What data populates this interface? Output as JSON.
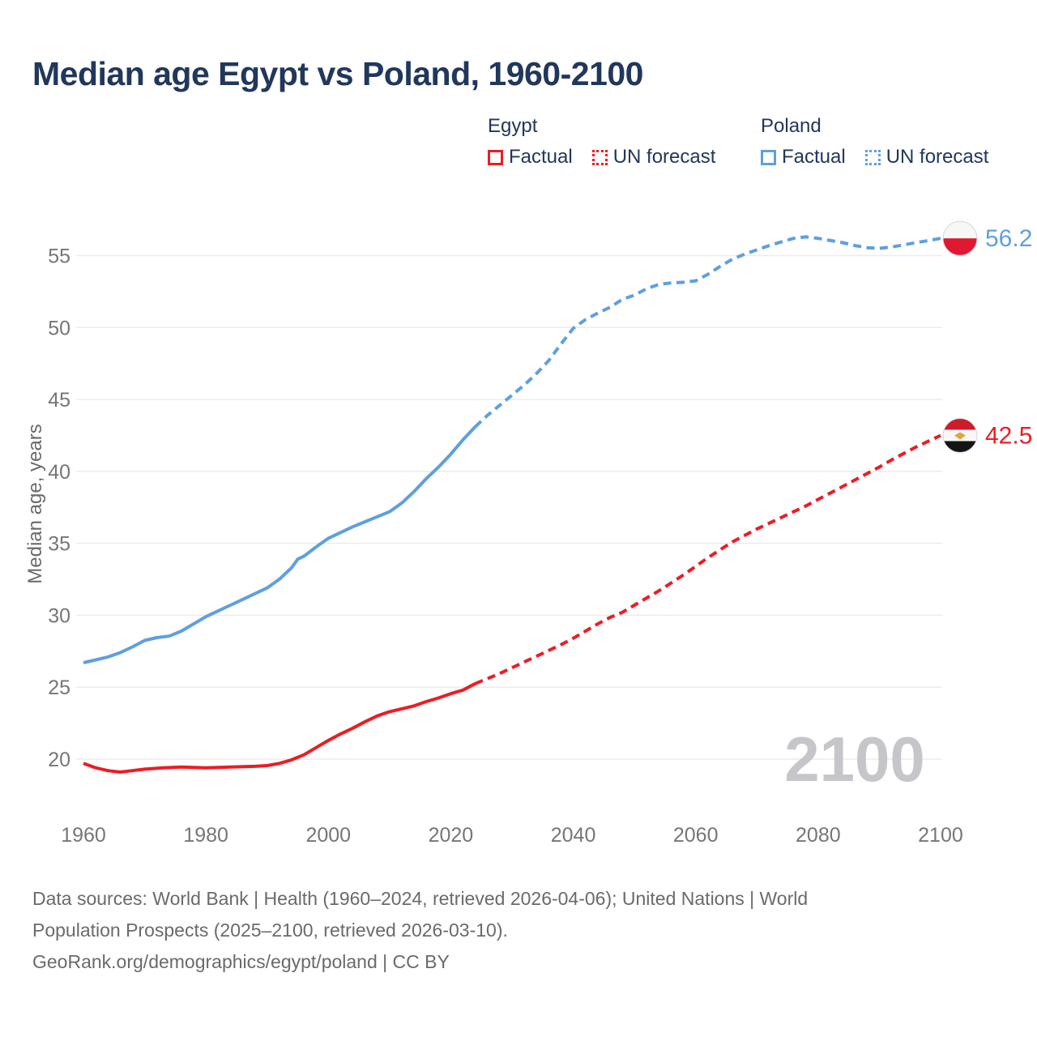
{
  "title": "Median age Egypt vs Poland, 1960-2100",
  "watermark": "2100",
  "colors": {
    "egypt": "#ed1c24",
    "poland": "#5f9fdf",
    "navy": "#21375c",
    "tick_gray": "#76767a",
    "gridline": "#ececee",
    "watermark_gray": "#c6c6ca"
  },
  "legend": {
    "groups": [
      {
        "country": "Egypt",
        "color": "#ed1c24",
        "items": [
          {
            "label": "Factual",
            "style": "solid"
          },
          {
            "label": "UN forecast",
            "style": "dotted"
          }
        ]
      },
      {
        "country": "Poland",
        "color": "#5f9fdf",
        "items": [
          {
            "label": "Factual",
            "style": "solid"
          },
          {
            "label": "UN forecast",
            "style": "dotted"
          }
        ]
      }
    ]
  },
  "footer": {
    "line1": "Data sources: World Bank | Health (1960–2024, retrieved 2026-04-06); United Nations | World",
    "line2": "Population Prospects (2025–2100, retrieved 2026-03-10).",
    "line3": "GeoRank.org/demographics/egypt/poland | CC BY"
  },
  "chart_data": {
    "type": "line",
    "title": "Median age Egypt vs Poland, 1960-2100",
    "xlabel": "",
    "ylabel": "Median age, years",
    "x_ticks": [
      1960,
      1980,
      2000,
      2020,
      2040,
      2060,
      2080,
      2100
    ],
    "y_ticks": [
      20,
      25,
      30,
      35,
      40,
      45,
      50,
      55
    ],
    "xlim": [
      1959,
      2113
    ],
    "ylim": [
      18.5,
      58
    ],
    "grid": "horizontal",
    "legend_position": "top",
    "series": [
      {
        "name": "Egypt factual",
        "color": "#ed1c24",
        "dash": "solid",
        "points": [
          [
            1960,
            19.7
          ],
          [
            1962,
            19.4
          ],
          [
            1964,
            19.2
          ],
          [
            1966,
            19.1
          ],
          [
            1968,
            19.2
          ],
          [
            1970,
            19.3
          ],
          [
            1973,
            19.4
          ],
          [
            1976,
            19.45
          ],
          [
            1980,
            19.4
          ],
          [
            1984,
            19.45
          ],
          [
            1988,
            19.5
          ],
          [
            1990,
            19.55
          ],
          [
            1992,
            19.7
          ],
          [
            1994,
            19.95
          ],
          [
            1996,
            20.3
          ],
          [
            1998,
            20.8
          ],
          [
            2000,
            21.3
          ],
          [
            2002,
            21.75
          ],
          [
            2004,
            22.15
          ],
          [
            2006,
            22.6
          ],
          [
            2008,
            23.0
          ],
          [
            2010,
            23.3
          ],
          [
            2012,
            23.5
          ],
          [
            2014,
            23.7
          ],
          [
            2016,
            24.0
          ],
          [
            2018,
            24.25
          ],
          [
            2020,
            24.55
          ],
          [
            2022,
            24.8
          ],
          [
            2024,
            25.25
          ]
        ]
      },
      {
        "name": "Egypt UN forecast",
        "color": "#ed1c24",
        "dash": "dashed",
        "points": [
          [
            2024,
            25.25
          ],
          [
            2026,
            25.6
          ],
          [
            2028,
            25.95
          ],
          [
            2030,
            26.35
          ],
          [
            2032,
            26.75
          ],
          [
            2034,
            27.15
          ],
          [
            2036,
            27.55
          ],
          [
            2038,
            27.95
          ],
          [
            2040,
            28.4
          ],
          [
            2042,
            28.9
          ],
          [
            2044,
            29.4
          ],
          [
            2046,
            29.85
          ],
          [
            2048,
            30.2
          ],
          [
            2050,
            30.7
          ],
          [
            2052,
            31.2
          ],
          [
            2054,
            31.7
          ],
          [
            2056,
            32.25
          ],
          [
            2058,
            32.8
          ],
          [
            2060,
            33.4
          ],
          [
            2062,
            34.0
          ],
          [
            2064,
            34.55
          ],
          [
            2066,
            35.1
          ],
          [
            2068,
            35.55
          ],
          [
            2070,
            36.0
          ],
          [
            2072,
            36.4
          ],
          [
            2074,
            36.8
          ],
          [
            2076,
            37.2
          ],
          [
            2078,
            37.6
          ],
          [
            2080,
            38.05
          ],
          [
            2082,
            38.5
          ],
          [
            2084,
            38.95
          ],
          [
            2086,
            39.4
          ],
          [
            2088,
            39.85
          ],
          [
            2090,
            40.3
          ],
          [
            2092,
            40.8
          ],
          [
            2094,
            41.25
          ],
          [
            2096,
            41.7
          ],
          [
            2098,
            42.1
          ],
          [
            2100,
            42.5
          ]
        ]
      },
      {
        "name": "Poland factual",
        "color": "#5f9fdf",
        "dash": "solid",
        "points": [
          [
            1960,
            26.7
          ],
          [
            1962,
            26.9
          ],
          [
            1964,
            27.1
          ],
          [
            1966,
            27.4
          ],
          [
            1968,
            27.8
          ],
          [
            1970,
            28.25
          ],
          [
            1972,
            28.45
          ],
          [
            1974,
            28.55
          ],
          [
            1976,
            28.9
          ],
          [
            1978,
            29.4
          ],
          [
            1980,
            29.9
          ],
          [
            1982,
            30.3
          ],
          [
            1984,
            30.7
          ],
          [
            1986,
            31.1
          ],
          [
            1988,
            31.5
          ],
          [
            1990,
            31.9
          ],
          [
            1992,
            32.5
          ],
          [
            1994,
            33.3
          ],
          [
            1995,
            33.9
          ],
          [
            1996,
            34.1
          ],
          [
            1998,
            34.75
          ],
          [
            2000,
            35.35
          ],
          [
            2002,
            35.75
          ],
          [
            2004,
            36.15
          ],
          [
            2006,
            36.5
          ],
          [
            2008,
            36.85
          ],
          [
            2010,
            37.2
          ],
          [
            2012,
            37.8
          ],
          [
            2014,
            38.6
          ],
          [
            2016,
            39.5
          ],
          [
            2018,
            40.3
          ],
          [
            2020,
            41.2
          ],
          [
            2022,
            42.2
          ],
          [
            2024,
            43.1
          ]
        ]
      },
      {
        "name": "Poland UN forecast",
        "color": "#5f9fdf",
        "dash": "dashed",
        "points": [
          [
            2024,
            43.1
          ],
          [
            2026,
            43.9
          ],
          [
            2028,
            44.6
          ],
          [
            2030,
            45.3
          ],
          [
            2032,
            46.0
          ],
          [
            2034,
            46.8
          ],
          [
            2036,
            47.7
          ],
          [
            2038,
            48.85
          ],
          [
            2040,
            49.95
          ],
          [
            2042,
            50.55
          ],
          [
            2044,
            51.0
          ],
          [
            2046,
            51.4
          ],
          [
            2048,
            51.95
          ],
          [
            2050,
            52.25
          ],
          [
            2052,
            52.7
          ],
          [
            2054,
            53.0
          ],
          [
            2056,
            53.1
          ],
          [
            2058,
            53.15
          ],
          [
            2060,
            53.25
          ],
          [
            2062,
            53.7
          ],
          [
            2064,
            54.25
          ],
          [
            2066,
            54.75
          ],
          [
            2068,
            55.1
          ],
          [
            2070,
            55.4
          ],
          [
            2072,
            55.7
          ],
          [
            2074,
            55.95
          ],
          [
            2076,
            56.2
          ],
          [
            2078,
            56.3
          ],
          [
            2080,
            56.2
          ],
          [
            2082,
            56.05
          ],
          [
            2084,
            55.9
          ],
          [
            2086,
            55.7
          ],
          [
            2088,
            55.55
          ],
          [
            2090,
            55.5
          ],
          [
            2092,
            55.6
          ],
          [
            2094,
            55.75
          ],
          [
            2096,
            55.9
          ],
          [
            2098,
            56.05
          ],
          [
            2100,
            56.2
          ]
        ]
      }
    ],
    "end_labels": [
      {
        "series": "Poland",
        "label": "56.2",
        "value": 56.2,
        "flag": "poland",
        "color": "#5f9fdf"
      },
      {
        "series": "Egypt",
        "label": "42.5",
        "value": 42.5,
        "flag": "egypt",
        "color": "#ed1c24"
      }
    ]
  }
}
